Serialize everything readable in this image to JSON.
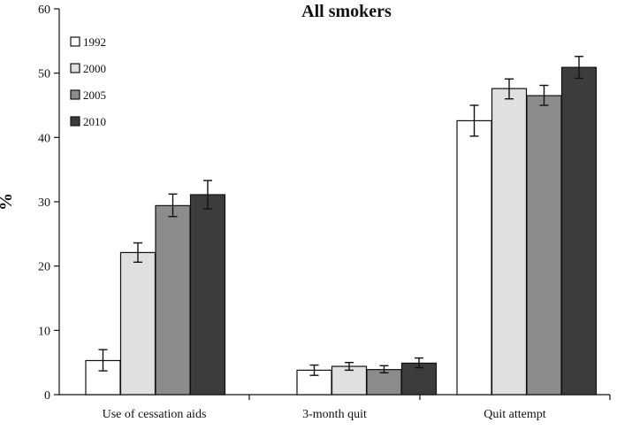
{
  "chart_data": {
    "type": "bar",
    "title": "All smokers",
    "xlabel": "",
    "ylabel": "%",
    "ylim": [
      0,
      60
    ],
    "yticks": [
      0,
      10,
      20,
      30,
      40,
      50,
      60
    ],
    "grid": false,
    "legend_position": "top-left",
    "categories": [
      "Use of cessation aids",
      "3-month quit",
      "Quit attempt"
    ],
    "series": [
      {
        "name": "1992",
        "color": "#ffffff",
        "values": [
          5.3,
          3.8,
          42.6
        ],
        "err_low": [
          3.7,
          3.0,
          40.2
        ],
        "err_high": [
          7.0,
          4.6,
          45.0
        ]
      },
      {
        "name": "2000",
        "color": "#e0e0e0",
        "values": [
          22.1,
          4.4,
          47.6
        ],
        "err_low": [
          20.6,
          3.8,
          46.0
        ],
        "err_high": [
          23.6,
          5.0,
          49.1
        ]
      },
      {
        "name": "2005",
        "color": "#8c8c8c",
        "values": [
          29.4,
          3.9,
          46.5
        ],
        "err_low": [
          27.7,
          3.4,
          45.0
        ],
        "err_high": [
          31.2,
          4.5,
          48.1
        ]
      },
      {
        "name": "2010",
        "color": "#3c3c3c",
        "values": [
          31.1,
          4.9,
          50.9
        ],
        "err_low": [
          28.9,
          4.2,
          49.2
        ],
        "err_high": [
          33.3,
          5.7,
          52.6
        ]
      }
    ]
  }
}
